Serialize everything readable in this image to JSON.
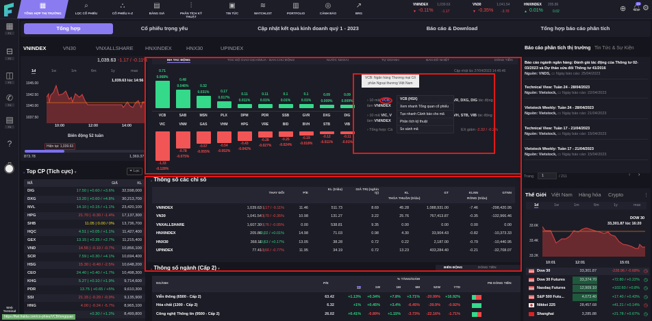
{
  "nav": {
    "items": [
      {
        "label": "TỔNG HỢP THỊ TRƯỜNG",
        "icon": "calendar-icon",
        "active": true
      },
      {
        "label": "LỌC CỔ PHIẾU",
        "icon": "search-icon"
      },
      {
        "label": "CỔ PHIẾU A-Z",
        "icon": "cubes-icon"
      },
      {
        "label": "BẢNG GIÁ",
        "icon": "clipboard-icon"
      },
      {
        "label": "PHÂN TÍCH KỸ THUẬT",
        "icon": "chart-line-icon"
      },
      {
        "label": "TIN TỨC",
        "icon": "newspaper-icon"
      },
      {
        "label": "WATCHLIST",
        "icon": "layers-icon"
      },
      {
        "label": "PORTFOLIO",
        "icon": "bar-chart-icon"
      },
      {
        "label": "CẢNH BÁO",
        "icon": "alarm-icon"
      },
      {
        "label": "BRG",
        "icon": "trend-icon"
      }
    ],
    "tickers": [
      {
        "name": "VNINDEX",
        "value": "1,039.63",
        "pct": "-0.11%",
        "chg": "-1.17",
        "dir": "down"
      },
      {
        "name": "VN30",
        "value": "1,041.54",
        "pct": "-0.35%",
        "chg": "-3.70",
        "dir": "down"
      },
      {
        "name": "HNXINDEX",
        "value": "205.86",
        "pct": "0.01%",
        "chg": "0.02",
        "dir": "up"
      }
    ],
    "notification_count": "21"
  },
  "sidebar": {
    "items": [
      {
        "key": "F1",
        "icon": "dashboard-icon"
      },
      {
        "key": "F2",
        "icon": "inbox-icon"
      },
      {
        "key": "F3",
        "icon": "chat-icon"
      },
      {
        "key": "F4",
        "icon": "phone-24-icon"
      },
      {
        "key": "F6",
        "icon": "message-icon"
      },
      {
        "key": "",
        "icon": "help-icon"
      },
      {
        "key": "",
        "icon": "book-icon"
      }
    ],
    "web_terminal": "Web Terminal"
  },
  "subtabs": [
    "Tổng hợp",
    "Cổ phiếu trọng yếu",
    "Cập nhật kết quả kinh doanh quý 1 - 2023",
    "Báo cáo & Download",
    "Tổng hợp báo cáo phân tích"
  ],
  "index_tabs": [
    "VNINDEX",
    "VN30",
    "VNXALLSHARE",
    "HNXINDEX",
    "HNX30",
    "UPINDEX"
  ],
  "left": {
    "price": "1,039.63",
    "change": "-1.17 / -0.11%",
    "periods": [
      "1d",
      "1w",
      "1m",
      "6m",
      "1y",
      "max"
    ],
    "chart_caption": "1,039.63 lúc 14:56",
    "y_ticks": [
      "1045.00",
      "1042.50",
      "1040.00",
      "1037.50"
    ],
    "x_ticks": [
      "10:00",
      "12:00",
      "14:00"
    ],
    "week52_title": "Biến động 52 tuần",
    "current_label": "Hiện tại: 1,039.63",
    "low": "873.78",
    "high": "1,369.37",
    "week52_position": 0.33
  },
  "top_cp": {
    "title": "Top CP (Tích cực)",
    "filter": "Lọc",
    "headers": [
      "MÃ",
      "GIÁ",
      "KL"
    ],
    "rows": [
      {
        "code": "DIG",
        "price": "17.50 | +0.60 / +3.6%",
        "kl": "32,598,000",
        "c": "g"
      },
      {
        "code": "DXG",
        "price": "13.20 | +0.60 / +4.8%",
        "kl": "30,213,700",
        "c": "g"
      },
      {
        "code": "NVL",
        "price": "14.10 | +0.15 / +1.1%",
        "kl": "23,420,100",
        "c": "g"
      },
      {
        "code": "HPG",
        "price": "21.70 | -0.30 / -1.4%",
        "kl": "17,137,300",
        "c": "r"
      },
      {
        "code": "SHB",
        "price": "11.05 | 0.00 / 0%",
        "kl": "13,736,700",
        "c": "y"
      },
      {
        "code": "HQC",
        "price": "4.51 | +0.05 / +1.1%",
        "kl": "11,427,400",
        "c": "g"
      },
      {
        "code": "GEX",
        "price": "13.15 | +0.35 / +2.7%",
        "kl": "11,215,400",
        "c": "g"
      },
      {
        "code": "VND",
        "price": "14.55 | -0.10 / -0.7%",
        "kl": "10,856,100",
        "c": "r"
      },
      {
        "code": "SCR",
        "price": "7.59 | +0.30 / +4.1%",
        "kl": "10,694,400",
        "c": "g"
      },
      {
        "code": "HSG",
        "price": "15.30 | -0.40 / -2.5%",
        "kl": "10,648,200",
        "c": "r"
      },
      {
        "code": "CEO",
        "price": "24.40 | +0.40 / +1.7%",
        "kl": "10,498,300",
        "c": "g"
      },
      {
        "code": "KHG",
        "price": "5.27 | +0.10 / +1.9%",
        "kl": "9,714,600",
        "c": "g"
      },
      {
        "code": "PDR",
        "price": "13.75 | +0.65 / +5%",
        "kl": "9,610,300",
        "c": "g"
      },
      {
        "code": "SSI",
        "price": "21.15 | -0.20 / -0.9%",
        "kl": "9,135,900",
        "c": "r"
      },
      {
        "code": "HNG",
        "price": "4.00 | -0.24 / -5.7%",
        "kl": "8,965,100",
        "c": "r"
      },
      {
        "code": "",
        "price": "+0.30 / +1.2%",
        "kl": "8,499,800",
        "c": "g"
      }
    ]
  },
  "status_url": "https://fiwt.fialda.com/co-phieu/VCB/tongquan",
  "movers": {
    "tabs": [
      "MA TAC ĐỘNG",
      "TOC ĐỘ GIAO DỊCH/MUA - BAN CHỦ ĐỘNG",
      "NƯỚC NGOAI",
      "TỰ DOANH",
      "BAN ĐỒ NHIỆT",
      "DÒNG TIỀN"
    ],
    "updated": "Cập nhật lúc 27/04/2023 14:45:46",
    "positive": [
      {
        "code": "VCB",
        "pts": 0.71,
        "pct": "0.068%"
      },
      {
        "code": "SAB",
        "pts": 0.48,
        "pct": "0.046%"
      },
      {
        "code": "MSN",
        "pts": 0.32,
        "pct": "0.031%"
      },
      {
        "code": "PLX",
        "pts": 0.17,
        "pct": "0.017%"
      },
      {
        "code": "DPM",
        "pts": 0.11,
        "pct": "0.011%"
      },
      {
        "code": "PDR",
        "pts": 0.11,
        "pct": "0.01%"
      },
      {
        "code": "SSB",
        "pts": 0.1,
        "pct": "0.01%"
      },
      {
        "code": "GVR",
        "pts": 0.1,
        "pct": "0.01%"
      },
      {
        "code": "DXG",
        "pts": 0.09,
        "pct": "0.009%"
      },
      {
        "code": "DIG",
        "pts": 0.09,
        "pct": "0.009%"
      }
    ],
    "negative": [
      {
        "code": "VIC",
        "pts": -1.33,
        "pct": "-0.128%"
      },
      {
        "code": "VNM",
        "pts": -0.78,
        "pct": "-0.075%"
      },
      {
        "code": "GAS",
        "pts": -0.57,
        "pct": "-0.055%"
      },
      {
        "code": "VHM",
        "pts": -0.54,
        "pct": "-0.052%"
      },
      {
        "code": "HPG",
        "pts": -0.43,
        "pct": "-0.042%"
      },
      {
        "code": "VRE",
        "pts": -0.28,
        "pct": "-0.027%"
      },
      {
        "code": "BID",
        "pts": -0.25,
        "pct": "-0.024%"
      },
      {
        "code": "BVH",
        "pts": -0.19,
        "pct": "-0.018%"
      },
      {
        "code": "STB",
        "pts": -0.12,
        "pct": "-0.011%"
      },
      {
        "code": "VIB",
        "pts": -0.11,
        "pct": "-0.01%"
      }
    ],
    "summary": {
      "line1a": "10 mã",
      "line1_code": "VCB,",
      "line1b": "GVR, DXG, DIG",
      "line1c": "tác động",
      "line1d": "làm",
      "line1_idx": "VNINDEX",
      "line2a": "10 mã",
      "line2_codes": "VIC, V",
      "line2b": "BVH, STB, VIB",
      "line2c": "tác động",
      "line2d": "làm",
      "line2_idx": "VNINDEX",
      "line3a": "Tổng hợp: Cá",
      "line3b": "EX giảm",
      "line3_val": "-2.32 / -0.2%"
    },
    "tooltip": "VCB: Ngân hàng Thương mại Cổ phần Ngoại thương Việt Nam",
    "context_menu": {
      "title": "VCB (HSX)",
      "items": [
        "Xem nhanh Tổng quan cổ phiếu",
        "Tạo nhanh Cảnh báo cho mã",
        "Phân tích kỹ thuật",
        "So sánh mã"
      ]
    }
  },
  "indices": {
    "title": "Thông số các chỉ số",
    "headers": [
      "THAY ĐỔI",
      "P/E",
      "KL (triệu)",
      "GIÁ TRỊ (nghìn tỷ)",
      "KL",
      "GT",
      "KLNN",
      "GTNN"
    ],
    "group1": "THỎA THUẬN (triệu)",
    "group2": "RÒNG (triệu)",
    "rows": [
      {
        "name": "VNINDEX",
        "value": "1,039.63",
        "chg": "-1.17 / -0.11%",
        "c": "r",
        "pe": "11.46",
        "kl": "511.73",
        "gt": "8.69",
        "tt_kl": "45.28",
        "tt_gt": "1,088,931.00",
        "nn_kl": "-7.46",
        "nn_gt": "-298,420.95"
      },
      {
        "name": "VN30",
        "value": "1,041.54",
        "chg": "-3.70 / -0.35%",
        "c": "r",
        "pe": "10.98",
        "kl": "131.27",
        "gt": "3.22",
        "tt_kl": "25.76",
        "tt_gt": "767,413.87",
        "nn_kl": "-0.35",
        "nn_gt": "-132,966.46"
      },
      {
        "name": "VNXALLSHARE",
        "value": "1,607.30",
        "chg": "-0.76 / -0.05%",
        "c": "r",
        "pe": "0.00",
        "kl": "538.81",
        "gt": "9.35",
        "tt_kl": "0.00",
        "tt_gt": "0.00",
        "nn_kl": "0.00",
        "nn_gt": "0.00"
      },
      {
        "name": "HNXINDEX",
        "value": "205.86",
        "chg": "+0.02 / +0.01%",
        "c": "g",
        "pe": "14.98",
        "kl": "71.03",
        "gt": "0.98",
        "tt_kl": "4.30",
        "tt_gt": "33,904.43",
        "nn_kl": "-0.82",
        "nn_gt": "-10,373.33"
      },
      {
        "name": "HNX30",
        "value": "368.11",
        "chg": "+0.63 / +0.17%",
        "c": "g",
        "pe": "13.05",
        "kl": "38.28",
        "gt": "0.72",
        "tt_kl": "0.22",
        "tt_gt": "2,187.00",
        "nn_kl": "-0.79",
        "nn_gt": "-10,440.95"
      },
      {
        "name": "UPINDEX",
        "value": "77.41",
        "chg": "-0.60 / -0.77%",
        "c": "r",
        "pe": "11.95",
        "kl": "34.19",
        "gt": "0.72",
        "tt_kl": "13.23",
        "tt_gt": "433,284.40",
        "nn_kl": "-0.21",
        "nn_gt": "-32,708.07"
      }
    ]
  },
  "sectors": {
    "title": "Thông số ngành (Cấp 2)",
    "toggle": [
      "BIẾN ĐỘNG",
      "DÒNG TIỀN"
    ],
    "headers": {
      "name": "NGÀNH",
      "pe": "P/E",
      "group": "% TĂNG/GIẢM",
      "periods": [
        "1D",
        "1W",
        "1M",
        "6M",
        "52W",
        "YTD"
      ],
      "flow": "PB DÒNG TIỀN"
    },
    "rows": [
      {
        "name": "Viễn thông (6500 - Cấp 2)",
        "pe": "63.42",
        "v": [
          "+1.13%",
          "+0.34%",
          "+7.8%",
          "+3.71%",
          "-20.99%",
          "+16.92%"
        ],
        "flow_pos": 0.45
      },
      {
        "name": "Hóa chất (1300 - Cấp 2)",
        "pe": "6.32",
        "v": [
          "+1%",
          "+0.45%",
          "+3.4%",
          "-6.45%",
          "-39.9%",
          "-0.92%"
        ],
        "flow_pos": 1.0
      },
      {
        "name": "Công nghệ Thông tin (9500 - Cấp 2)",
        "pe": "26.02",
        "v": [
          "+0.41%",
          "-0.89%",
          "+1.15%",
          "-3.73%",
          "-22.16%",
          "-1.71%"
        ],
        "flow_pos": 0.6
      }
    ]
  },
  "right": {
    "tabs": [
      "Báo cáo phân tích thị trường",
      "Tin Tức & Sự Kiện"
    ],
    "reports": [
      {
        "title": "Báo cáo ngành ngân hàng: Đánh giá tác động của Thông tư 02-03/2023 và Dự thảo sửa đổi Thông tư 41/2016",
        "source": "Nguồn: VNDS,",
        "date": "Ngày báo cáo: 25/04/2023"
      },
      {
        "title": "Technical View: Tuần 24 - 28/04/2023",
        "source": "Nguồn: Vietstock,",
        "date": "Ngày báo cáo: 22/04/2023"
      },
      {
        "title": "Vietstock Weekly: Tuần 24 - 28/04/2023",
        "source": "Nguồn: Vietstock,",
        "date": "Ngày báo cáo: 21/04/2023"
      },
      {
        "title": "Technical View: Tuần 17 - 21/04/2023",
        "source": "Nguồn: Vietstock,",
        "date": "Ngày báo cáo: 15/04/2023"
      },
      {
        "title": "Vietstock Weekly: Tuần 17 - 21/04/2023",
        "source": "Nguồn: Vietstock,",
        "date": "Ngày báo cáo: 15/04/2023"
      }
    ],
    "page_label": "Trang",
    "page": "1",
    "page_total": "/ 211",
    "world_tabs": [
      "Thế Giới",
      "Việt Nam",
      "Hàng hóa",
      "Crypto"
    ],
    "periods": [
      "1d",
      "1w",
      "1m",
      "6m",
      "1y",
      "max"
    ],
    "chart_name": "DOW 30",
    "chart_caption": "33,301.87 lúc 16:20",
    "y_ticks": [
      "33.6K",
      "33.4K",
      "33.2K"
    ],
    "x_ticks": [
      "10:01",
      "12:01",
      "15:01"
    ],
    "world": [
      {
        "name": "Dow 30",
        "flag": "us",
        "value": "33,301.87",
        "chg": "-228.96 / -0.68%",
        "c": "r",
        "hl": false
      },
      {
        "name": "Dow 30 Futures",
        "flag": "us",
        "value": "33,374.70",
        "chg": "+72.80 / +0.22%",
        "c": "g",
        "hl": true
      },
      {
        "name": "Nasdaq Futures",
        "flag": "us",
        "value": "12,909.10",
        "chg": "+102.60 / +0.8%",
        "c": "g",
        "hl": true
      },
      {
        "name": "S&P 500 Futu...",
        "flag": "us",
        "value": "4,073.40",
        "chg": "+17.40 / +0.43%",
        "c": "g",
        "hl": true
      },
      {
        "name": "Nikkei 225",
        "flag": "jp",
        "value": "28,457.68",
        "chg": "+41.21 / +0.14%",
        "c": "g",
        "hl": false
      },
      {
        "name": "Shanghai",
        "flag": "cn",
        "value": "3,285.88",
        "chg": "+21.78 / +0.67%",
        "c": "g",
        "hl": false
      }
    ]
  }
}
